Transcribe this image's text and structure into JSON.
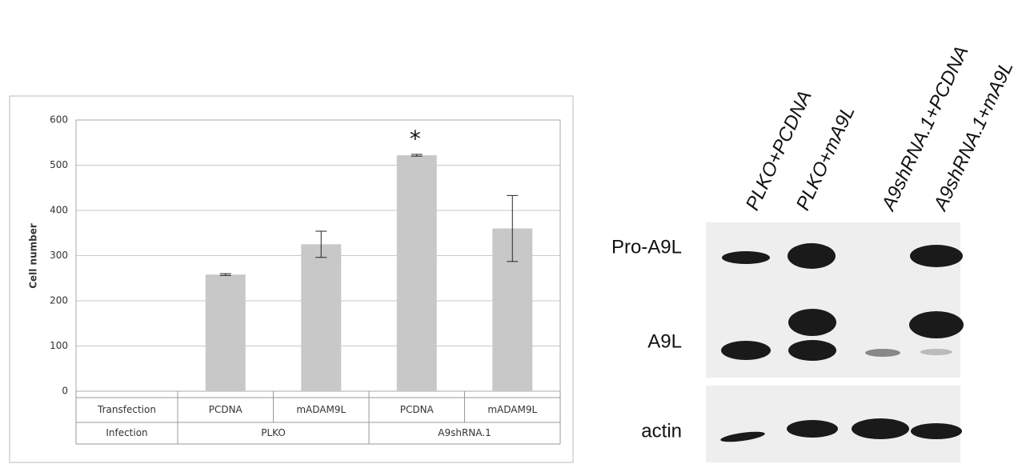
{
  "chart_data": {
    "type": "bar",
    "y_label": "Cell number",
    "row_labels": [
      "Transfection",
      "Infection"
    ],
    "categories": [
      "PCDNA",
      "mADAM9L",
      "PCDNA",
      "mADAM9L"
    ],
    "groups": [
      "PLKO",
      "A9shRNA.1"
    ],
    "values": [
      258,
      325,
      522,
      360
    ],
    "errors": [
      2,
      29,
      2,
      73
    ],
    "value_annotations": [
      null,
      null,
      "*",
      null
    ],
    "color": "#c8c8c8",
    "ylim": [
      0,
      600
    ],
    "yticks": [
      0,
      100,
      200,
      300,
      400,
      500,
      600
    ],
    "grid": true
  },
  "blot": {
    "lanes": [
      "PLKO+PCDNA",
      "PLKO+mA9L",
      "A9shRNA.1+PCDNA",
      "A9shRNA.1+mA9L"
    ],
    "rows": [
      "Pro-A9L",
      "A9L",
      "actin"
    ]
  }
}
